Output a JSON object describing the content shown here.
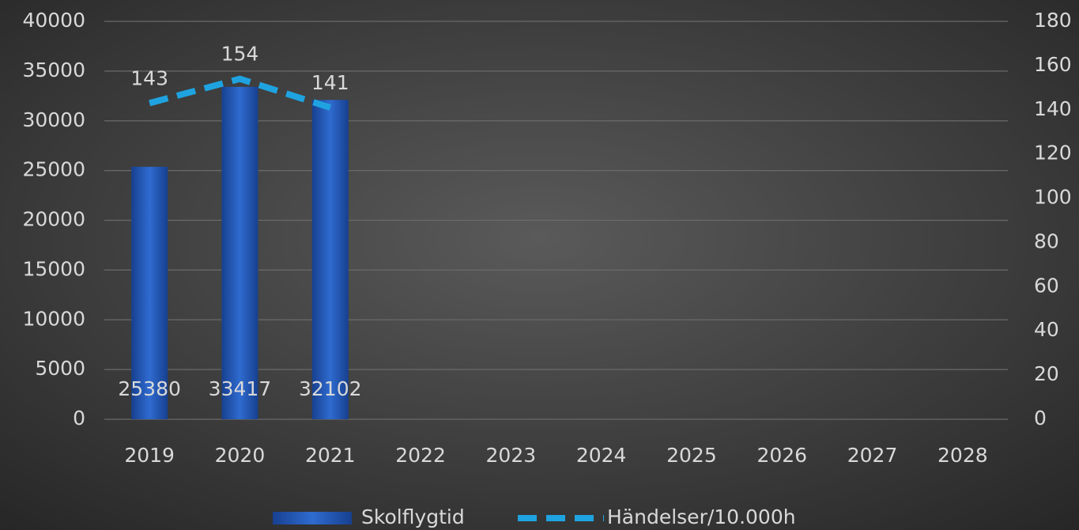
{
  "chart_data": {
    "type": "bar",
    "categories": [
      "2019",
      "2020",
      "2021",
      "2022",
      "2023",
      "2024",
      "2025",
      "2026",
      "2027",
      "2028"
    ],
    "series": [
      {
        "name": "Skolflygtid",
        "type": "bar",
        "color": "#2a5fc0",
        "values": [
          25380,
          33417,
          32102,
          null,
          null,
          null,
          null,
          null,
          null,
          null
        ]
      },
      {
        "name": "Händelser/10.000h",
        "type": "line",
        "axis": "y2",
        "color": "#1fa3e0",
        "values": [
          143,
          154,
          141,
          null,
          null,
          null,
          null,
          null,
          null,
          null
        ]
      }
    ],
    "ylim": [
      0,
      40000
    ],
    "yticks": [
      0,
      5000,
      10000,
      15000,
      20000,
      25000,
      30000,
      35000,
      40000
    ],
    "y2lim": [
      0,
      180
    ],
    "y2ticks": [
      0,
      20,
      40,
      60,
      80,
      100,
      120,
      140,
      160,
      180
    ],
    "grid": true,
    "legend": "bottom"
  }
}
